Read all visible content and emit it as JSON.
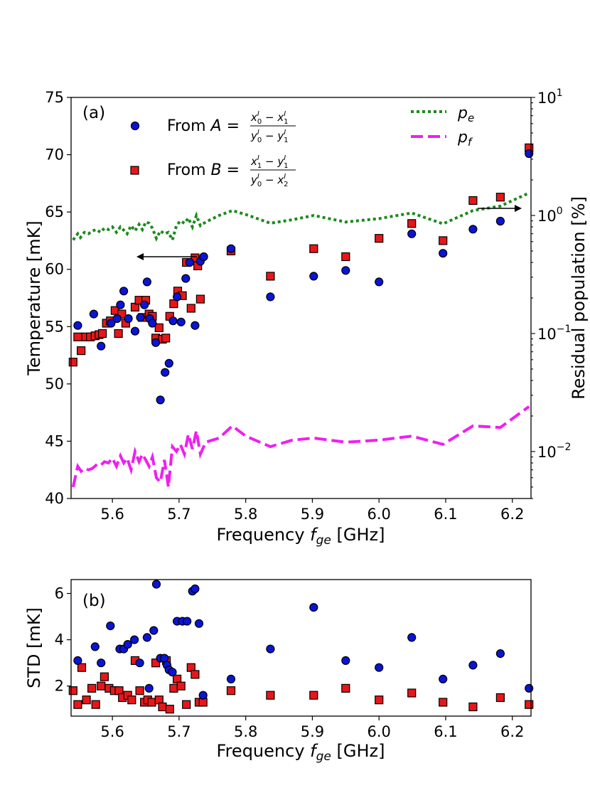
{
  "chart_data": [
    {
      "type": "scatter",
      "panel_label": "(a)",
      "xlabel": "Frequency",
      "xlabel_math": "f",
      "xlabel_sub": "ge",
      "xlabel_unit": "[GHz]",
      "ylabel": "Temperature [mK]",
      "ylabel_right": "Residual population [%]",
      "xlim": [
        5.538,
        6.228
      ],
      "ylim": [
        40,
        75
      ],
      "ylim_right_log": [
        0.004,
        10
      ],
      "xticks": [
        "5.6",
        "5.7",
        "5.8",
        "5.9",
        "6.0",
        "6.1",
        "6.2"
      ],
      "yticks": [
        "40",
        "45",
        "50",
        "55",
        "60",
        "65",
        "70",
        "75"
      ],
      "yticks_right": [
        {
          "base": "10",
          "exp": "−2",
          "value": 0.01
        },
        {
          "base": "10",
          "exp": "−1",
          "value": 0.1
        },
        {
          "base": "10",
          "exp": "0",
          "value": 1
        },
        {
          "base": "10",
          "exp": "1",
          "value": 10
        }
      ],
      "legend_left": [
        {
          "label": "From",
          "var": "A",
          "num": "x0I − x1I",
          "den": "y0I − y1I",
          "marker": "circle"
        },
        {
          "label": "From",
          "var": "B",
          "num": "x1I − y1I",
          "den": "y0I − x2I",
          "marker": "square"
        }
      ],
      "legend_right": [
        {
          "label": "p",
          "sub": "e",
          "style": "dotted"
        },
        {
          "label": "p",
          "sub": "f",
          "style": "dashed"
        }
      ],
      "series": [
        {
          "name": "From A",
          "marker": "circle",
          "color": "#0a14d6",
          "x": [
            5.548,
            5.572,
            5.583,
            5.598,
            5.607,
            5.612,
            5.617,
            5.624,
            5.634,
            5.642,
            5.648,
            5.652,
            5.656,
            5.66,
            5.665,
            5.672,
            5.679,
            5.685,
            5.691,
            5.697,
            5.703,
            5.71,
            5.716,
            5.724,
            5.732,
            5.737,
            5.778,
            5.837,
            5.902,
            5.95,
            6.0,
            6.049,
            6.096,
            6.141,
            6.182,
            6.225
          ],
          "y": [
            55.1,
            56.1,
            53.3,
            55.3,
            55.7,
            56.9,
            58.1,
            55.7,
            54.6,
            55.8,
            56.9,
            58.9,
            55.7,
            55.3,
            53.6,
            48.6,
            51.0,
            51.8,
            55.5,
            57.6,
            55.4,
            59.2,
            60.6,
            55.1,
            60.7,
            61.1,
            61.8,
            57.6,
            59.4,
            59.9,
            58.9,
            63.1,
            61.4,
            63.5,
            64.2,
            70.1
          ]
        },
        {
          "name": "From B",
          "marker": "square",
          "color": "#e8161a",
          "x": [
            5.541,
            5.548,
            5.553,
            5.56,
            5.567,
            5.574,
            5.58,
            5.585,
            5.591,
            5.597,
            5.604,
            5.609,
            5.614,
            5.62,
            5.634,
            5.64,
            5.645,
            5.65,
            5.655,
            5.66,
            5.665,
            5.67,
            5.675,
            5.68,
            5.686,
            5.692,
            5.698,
            5.705,
            5.711,
            5.718,
            5.724,
            5.728,
            5.732,
            5.778,
            5.837,
            5.902,
            5.95,
            6.0,
            6.049,
            6.096,
            6.141,
            6.182,
            6.225
          ],
          "y": [
            51.9,
            54.1,
            52.9,
            54.1,
            54.1,
            54.2,
            54.3,
            54.4,
            55.3,
            55.5,
            56.4,
            54.4,
            56.1,
            55.3,
            56.7,
            57.3,
            55.8,
            57.3,
            56.1,
            55.9,
            54.0,
            54.9,
            53.9,
            54.0,
            55.9,
            57.0,
            58.1,
            57.7,
            60.6,
            56.6,
            61.0,
            60.3,
            57.4,
            61.6,
            59.4,
            61.8,
            61.1,
            62.7,
            64.0,
            62.5,
            66.0,
            66.3,
            70.6
          ]
        },
        {
          "name": "p_e",
          "style": "dotted",
          "color": "#1c8a1c",
          "scale": "log",
          "x": [
            5.541,
            5.548,
            5.552,
            5.558,
            5.564,
            5.57,
            5.576,
            5.582,
            5.588,
            5.594,
            5.6,
            5.606,
            5.612,
            5.617,
            5.622,
            5.628,
            5.634,
            5.64,
            5.645,
            5.65,
            5.655,
            5.66,
            5.666,
            5.672,
            5.678,
            5.684,
            5.69,
            5.696,
            5.702,
            5.708,
            5.714,
            5.72,
            5.726,
            5.732,
            5.74,
            5.76,
            5.78,
            5.8,
            5.837,
            5.87,
            5.902,
            5.95,
            6.0,
            6.049,
            6.096,
            6.141,
            6.182,
            6.225
          ],
          "y": [
            0.62,
            0.7,
            0.65,
            0.72,
            0.7,
            0.74,
            0.76,
            0.72,
            0.78,
            0.76,
            0.8,
            0.72,
            0.8,
            0.75,
            0.7,
            0.82,
            0.74,
            0.84,
            0.76,
            0.88,
            0.86,
            0.78,
            0.64,
            0.74,
            0.7,
            0.72,
            0.62,
            0.82,
            0.9,
            0.86,
            0.95,
            0.8,
            1.0,
            0.82,
            0.88,
            1.0,
            1.1,
            1.02,
            0.86,
            0.92,
            1.0,
            0.88,
            0.94,
            1.05,
            0.85,
            1.1,
            1.2,
            1.55
          ]
        },
        {
          "name": "p_f",
          "style": "dashed",
          "color": "#f01ef0",
          "scale": "log",
          "x": [
            5.541,
            5.548,
            5.553,
            5.558,
            5.564,
            5.57,
            5.577,
            5.582,
            5.588,
            5.594,
            5.6,
            5.606,
            5.612,
            5.617,
            5.622,
            5.628,
            5.634,
            5.64,
            5.645,
            5.65,
            5.655,
            5.66,
            5.666,
            5.672,
            5.678,
            5.684,
            5.69,
            5.696,
            5.702,
            5.708,
            5.714,
            5.72,
            5.726,
            5.732,
            5.74,
            5.76,
            5.78,
            5.8,
            5.837,
            5.87,
            5.902,
            5.95,
            6.0,
            6.049,
            6.096,
            6.141,
            6.182,
            6.225
          ],
          "y": [
            0.005,
            0.0075,
            0.0068,
            0.0072,
            0.007,
            0.0072,
            0.0078,
            0.0076,
            0.0082,
            0.008,
            0.0088,
            0.0075,
            0.0092,
            0.008,
            0.0088,
            0.007,
            0.01,
            0.0082,
            0.0095,
            0.0085,
            0.0075,
            0.009,
            0.006,
            0.0055,
            0.0085,
            0.005,
            0.011,
            0.01,
            0.0115,
            0.0095,
            0.014,
            0.0105,
            0.015,
            0.0095,
            0.012,
            0.013,
            0.0165,
            0.0135,
            0.011,
            0.0125,
            0.013,
            0.012,
            0.0125,
            0.0135,
            0.0115,
            0.0165,
            0.016,
            0.024
          ]
        }
      ]
    },
    {
      "type": "scatter",
      "panel_label": "(b)",
      "xlabel": "Frequency",
      "xlabel_math": "f",
      "xlabel_sub": "ge",
      "xlabel_unit": "[GHz]",
      "ylabel": "STD [mK]",
      "xlim": [
        5.538,
        6.228
      ],
      "ylim": [
        0.7,
        6.6
      ],
      "xticks": [
        "5.6",
        "5.7",
        "5.8",
        "5.9",
        "6.0",
        "6.1",
        "6.2"
      ],
      "yticks": [
        "2",
        "4",
        "6"
      ],
      "series": [
        {
          "name": "From A",
          "marker": "circle",
          "color": "#0a14d6",
          "x": [
            5.548,
            5.574,
            5.583,
            5.597,
            5.611,
            5.617,
            5.623,
            5.633,
            5.641,
            5.652,
            5.655,
            5.662,
            5.666,
            5.672,
            5.678,
            5.682,
            5.685,
            5.69,
            5.697,
            5.705,
            5.712,
            5.72,
            5.724,
            5.73,
            5.736,
            5.778,
            5.837,
            5.902,
            5.95,
            6.0,
            6.049,
            6.096,
            6.141,
            6.182,
            6.225
          ],
          "y": [
            3.1,
            3.7,
            3.0,
            4.6,
            3.6,
            3.6,
            3.8,
            4.0,
            3.0,
            4.1,
            1.9,
            4.4,
            6.4,
            3.2,
            3.2,
            2.9,
            2.7,
            2.6,
            4.8,
            4.8,
            4.8,
            6.1,
            6.2,
            4.7,
            1.6,
            2.3,
            3.6,
            5.4,
            3.1,
            2.8,
            4.1,
            2.3,
            2.9,
            3.4,
            1.9
          ]
        },
        {
          "name": "From B",
          "marker": "square",
          "color": "#e8161a",
          "x": [
            5.541,
            5.548,
            5.554,
            5.561,
            5.569,
            5.575,
            5.583,
            5.588,
            5.595,
            5.603,
            5.61,
            5.615,
            5.623,
            5.629,
            5.634,
            5.641,
            5.648,
            5.653,
            5.659,
            5.665,
            5.67,
            5.675,
            5.681,
            5.686,
            5.692,
            5.697,
            5.703,
            5.711,
            5.718,
            5.724,
            5.73,
            5.736,
            5.778,
            5.837,
            5.902,
            5.95,
            6.0,
            6.049,
            6.096,
            6.141,
            6.182,
            6.225
          ],
          "y": [
            1.8,
            1.2,
            2.8,
            1.4,
            1.9,
            1.2,
            2.0,
            2.4,
            1.9,
            1.8,
            1.8,
            1.5,
            1.6,
            1.4,
            3.1,
            1.8,
            1.3,
            1.4,
            1.3,
            3.0,
            1.4,
            1.1,
            3.1,
            1.0,
            1.9,
            2.3,
            2.0,
            1.2,
            2.8,
            2.5,
            1.3,
            1.3,
            1.8,
            1.6,
            1.6,
            1.9,
            1.4,
            1.7,
            1.3,
            1.1,
            1.5,
            1.2
          ]
        }
      ]
    }
  ]
}
